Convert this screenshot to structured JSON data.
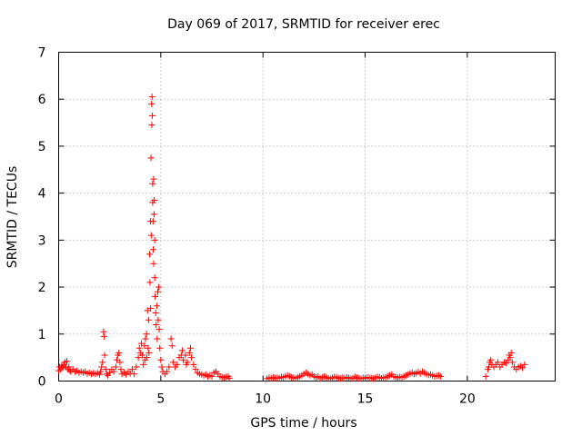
{
  "chart_data": {
    "type": "scatter",
    "title": "Day 069 of 2017, SRMTID for receiver erec",
    "xlabel": "GPS time / hours",
    "ylabel": "SRMTID / TECUs",
    "xlim": [
      0,
      24.3
    ],
    "ylim": [
      0,
      7
    ],
    "xticks": [
      0,
      5,
      10,
      15,
      20
    ],
    "yticks": [
      0,
      1,
      2,
      3,
      4,
      5,
      6,
      7
    ],
    "grid": true,
    "marker": "+",
    "series": [
      {
        "name": "SRMTID",
        "color": "#ff0000",
        "points": [
          [
            0.0,
            0.22
          ],
          [
            0.05,
            0.3
          ],
          [
            0.1,
            0.25
          ],
          [
            0.15,
            0.33
          ],
          [
            0.2,
            0.28
          ],
          [
            0.25,
            0.35
          ],
          [
            0.3,
            0.4
          ],
          [
            0.35,
            0.3
          ],
          [
            0.4,
            0.42
          ],
          [
            0.45,
            0.25
          ],
          [
            0.5,
            0.3
          ],
          [
            0.55,
            0.22
          ],
          [
            0.6,
            0.2
          ],
          [
            0.7,
            0.25
          ],
          [
            0.8,
            0.2
          ],
          [
            0.9,
            0.22
          ],
          [
            1.0,
            0.18
          ],
          [
            1.1,
            0.2
          ],
          [
            1.2,
            0.18
          ],
          [
            1.3,
            0.2
          ],
          [
            1.4,
            0.16
          ],
          [
            1.5,
            0.18
          ],
          [
            1.6,
            0.15
          ],
          [
            1.7,
            0.17
          ],
          [
            1.8,
            0.15
          ],
          [
            1.9,
            0.17
          ],
          [
            2.0,
            0.14
          ],
          [
            2.05,
            0.2
          ],
          [
            2.1,
            0.3
          ],
          [
            2.15,
            0.4
          ],
          [
            2.2,
            1.05
          ],
          [
            2.22,
            0.95
          ],
          [
            2.25,
            0.55
          ],
          [
            2.3,
            0.25
          ],
          [
            2.35,
            0.15
          ],
          [
            2.4,
            0.12
          ],
          [
            2.5,
            0.18
          ],
          [
            2.6,
            0.25
          ],
          [
            2.7,
            0.2
          ],
          [
            2.8,
            0.3
          ],
          [
            2.85,
            0.45
          ],
          [
            2.9,
            0.55
          ],
          [
            2.95,
            0.6
          ],
          [
            3.0,
            0.4
          ],
          [
            3.05,
            0.25
          ],
          [
            3.1,
            0.15
          ],
          [
            3.2,
            0.18
          ],
          [
            3.3,
            0.14
          ],
          [
            3.4,
            0.2
          ],
          [
            3.5,
            0.16
          ],
          [
            3.6,
            0.25
          ],
          [
            3.7,
            0.15
          ],
          [
            3.8,
            0.3
          ],
          [
            3.9,
            0.5
          ],
          [
            3.95,
            0.7
          ],
          [
            4.0,
            0.6
          ],
          [
            4.05,
            0.8
          ],
          [
            4.1,
            0.55
          ],
          [
            4.15,
            0.35
          ],
          [
            4.2,
            0.75
          ],
          [
            4.22,
            0.45
          ],
          [
            4.25,
            0.9
          ],
          [
            4.3,
            1.0
          ],
          [
            4.32,
            0.5
          ],
          [
            4.35,
            1.5
          ],
          [
            4.38,
            0.7
          ],
          [
            4.4,
            1.3
          ],
          [
            4.42,
            0.6
          ],
          [
            4.45,
            2.7
          ],
          [
            4.47,
            2.1
          ],
          [
            4.5,
            3.4
          ],
          [
            4.5,
            1.55
          ],
          [
            4.52,
            4.75
          ],
          [
            4.53,
            3.1
          ],
          [
            4.55,
            5.9
          ],
          [
            4.56,
            5.45
          ],
          [
            4.57,
            6.05
          ],
          [
            4.58,
            5.65
          ],
          [
            4.6,
            4.2
          ],
          [
            4.6,
            3.8
          ],
          [
            4.62,
            3.4
          ],
          [
            4.63,
            2.8
          ],
          [
            4.65,
            4.3
          ],
          [
            4.65,
            2.5
          ],
          [
            4.67,
            3.55
          ],
          [
            4.68,
            3.85
          ],
          [
            4.7,
            3.0
          ],
          [
            4.7,
            2.2
          ],
          [
            4.72,
            1.8
          ],
          [
            4.75,
            1.45
          ],
          [
            4.77,
            1.2
          ],
          [
            4.8,
            1.6
          ],
          [
            4.82,
            0.9
          ],
          [
            4.85,
            1.9
          ],
          [
            4.87,
            1.3
          ],
          [
            4.9,
            2.0
          ],
          [
            4.92,
            1.1
          ],
          [
            4.95,
            0.7
          ],
          [
            5.0,
            0.45
          ],
          [
            5.05,
            0.3
          ],
          [
            5.1,
            0.2
          ],
          [
            5.2,
            0.15
          ],
          [
            5.3,
            0.2
          ],
          [
            5.4,
            0.3
          ],
          [
            5.5,
            0.9
          ],
          [
            5.55,
            0.75
          ],
          [
            5.6,
            0.4
          ],
          [
            5.7,
            0.3
          ],
          [
            5.8,
            0.35
          ],
          [
            5.9,
            0.5
          ],
          [
            6.0,
            0.55
          ],
          [
            6.05,
            0.65
          ],
          [
            6.1,
            0.45
          ],
          [
            6.2,
            0.55
          ],
          [
            6.25,
            0.35
          ],
          [
            6.3,
            0.4
          ],
          [
            6.4,
            0.6
          ],
          [
            6.45,
            0.7
          ],
          [
            6.5,
            0.5
          ],
          [
            6.6,
            0.35
          ],
          [
            6.7,
            0.25
          ],
          [
            6.8,
            0.18
          ],
          [
            6.9,
            0.15
          ],
          [
            7.0,
            0.14
          ],
          [
            7.1,
            0.12
          ],
          [
            7.2,
            0.14
          ],
          [
            7.3,
            0.1
          ],
          [
            7.4,
            0.12
          ],
          [
            7.5,
            0.1
          ],
          [
            7.6,
            0.18
          ],
          [
            7.7,
            0.2
          ],
          [
            7.8,
            0.15
          ],
          [
            7.9,
            0.1
          ],
          [
            8.0,
            0.08
          ],
          [
            8.1,
            0.07
          ],
          [
            8.2,
            0.09
          ],
          [
            8.3,
            0.1
          ],
          [
            8.35,
            0.06
          ],
          [
            10.2,
            0.05
          ],
          [
            10.3,
            0.07
          ],
          [
            10.4,
            0.06
          ],
          [
            10.5,
            0.08
          ],
          [
            10.6,
            0.06
          ],
          [
            10.7,
            0.07
          ],
          [
            10.8,
            0.06
          ],
          [
            10.9,
            0.09
          ],
          [
            11.0,
            0.08
          ],
          [
            11.1,
            0.1
          ],
          [
            11.2,
            0.12
          ],
          [
            11.3,
            0.1
          ],
          [
            11.4,
            0.08
          ],
          [
            11.5,
            0.07
          ],
          [
            11.6,
            0.06
          ],
          [
            11.7,
            0.08
          ],
          [
            11.8,
            0.1
          ],
          [
            11.9,
            0.12
          ],
          [
            12.0,
            0.15
          ],
          [
            12.1,
            0.18
          ],
          [
            12.2,
            0.15
          ],
          [
            12.3,
            0.12
          ],
          [
            12.4,
            0.14
          ],
          [
            12.5,
            0.1
          ],
          [
            12.6,
            0.08
          ],
          [
            12.7,
            0.1
          ],
          [
            12.8,
            0.05
          ],
          [
            12.9,
            0.08
          ],
          [
            13.0,
            0.1
          ],
          [
            13.1,
            0.08
          ],
          [
            13.2,
            0.06
          ],
          [
            13.3,
            0.05
          ],
          [
            13.4,
            0.07
          ],
          [
            13.5,
            0.09
          ],
          [
            13.6,
            0.08
          ],
          [
            13.7,
            0.06
          ],
          [
            13.8,
            0.05
          ],
          [
            13.9,
            0.07
          ],
          [
            14.0,
            0.06
          ],
          [
            14.1,
            0.08
          ],
          [
            14.2,
            0.07
          ],
          [
            14.3,
            0.05
          ],
          [
            14.4,
            0.06
          ],
          [
            14.5,
            0.09
          ],
          [
            14.6,
            0.07
          ],
          [
            14.7,
            0.06
          ],
          [
            14.8,
            0.05
          ],
          [
            14.9,
            0.07
          ],
          [
            15.0,
            0.06
          ],
          [
            15.1,
            0.08
          ],
          [
            15.2,
            0.07
          ],
          [
            15.3,
            0.06
          ],
          [
            15.4,
            0.05
          ],
          [
            15.5,
            0.07
          ],
          [
            15.6,
            0.09
          ],
          [
            15.7,
            0.08
          ],
          [
            15.8,
            0.06
          ],
          [
            15.9,
            0.07
          ],
          [
            16.0,
            0.08
          ],
          [
            16.1,
            0.1
          ],
          [
            16.2,
            0.12
          ],
          [
            16.3,
            0.14
          ],
          [
            16.4,
            0.1
          ],
          [
            16.5,
            0.08
          ],
          [
            16.6,
            0.07
          ],
          [
            16.7,
            0.09
          ],
          [
            16.8,
            0.08
          ],
          [
            16.9,
            0.1
          ],
          [
            17.0,
            0.12
          ],
          [
            17.1,
            0.14
          ],
          [
            17.2,
            0.16
          ],
          [
            17.3,
            0.18
          ],
          [
            17.4,
            0.15
          ],
          [
            17.5,
            0.17
          ],
          [
            17.6,
            0.19
          ],
          [
            17.7,
            0.16
          ],
          [
            17.8,
            0.2
          ],
          [
            17.9,
            0.18
          ],
          [
            18.0,
            0.15
          ],
          [
            18.1,
            0.13
          ],
          [
            18.2,
            0.14
          ],
          [
            18.3,
            0.12
          ],
          [
            18.4,
            0.1
          ],
          [
            18.5,
            0.11
          ],
          [
            18.6,
            0.12
          ],
          [
            18.7,
            0.1
          ],
          [
            20.9,
            0.1
          ],
          [
            21.0,
            0.25
          ],
          [
            21.05,
            0.3
          ],
          [
            21.1,
            0.4
          ],
          [
            21.15,
            0.45
          ],
          [
            21.2,
            0.35
          ],
          [
            21.3,
            0.3
          ],
          [
            21.4,
            0.35
          ],
          [
            21.5,
            0.4
          ],
          [
            21.6,
            0.3
          ],
          [
            21.7,
            0.35
          ],
          [
            21.8,
            0.4
          ],
          [
            21.9,
            0.38
          ],
          [
            22.0,
            0.45
          ],
          [
            22.05,
            0.55
          ],
          [
            22.1,
            0.5
          ],
          [
            22.15,
            0.6
          ],
          [
            22.2,
            0.4
          ],
          [
            22.3,
            0.3
          ],
          [
            22.4,
            0.25
          ],
          [
            22.5,
            0.3
          ],
          [
            22.6,
            0.32
          ],
          [
            22.7,
            0.28
          ],
          [
            22.8,
            0.35
          ]
        ]
      }
    ]
  }
}
